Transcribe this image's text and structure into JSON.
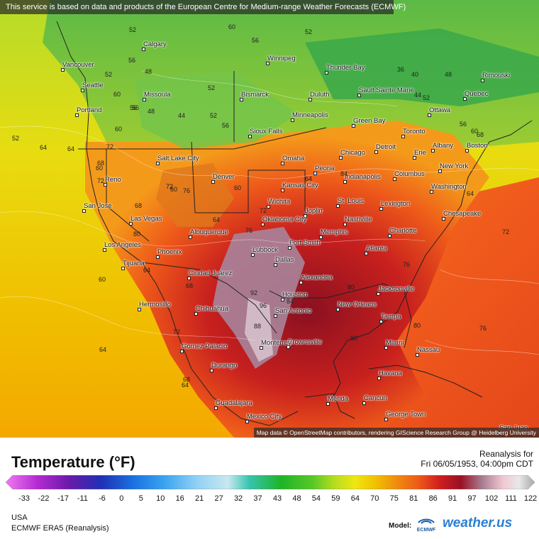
{
  "notice": "This service is based on data and products of the European Centre for Medium-range Weather Forecasts (ECMWF)",
  "attribution": "Map data © OpenStreetMap contributors, rendering GIScience Research Group @ Heidelberg University",
  "legend": {
    "title": "Temperature (°F)",
    "valid_line1": "Reanalysis for",
    "valid_line2": "Fri 06/05/1953, 04:00pm CDT",
    "ticks": [
      "-33",
      "-22",
      "-17",
      "-11",
      "-6",
      "0",
      "5",
      "10",
      "16",
      "21",
      "27",
      "32",
      "37",
      "43",
      "48",
      "54",
      "59",
      "64",
      "70",
      "75",
      "81",
      "86",
      "91",
      "97",
      "102",
      "111",
      "122"
    ],
    "region": "USA",
    "source": "ECMWF ERA5 (Reanalysis)",
    "model_label": "Model:",
    "model_logo_text": "ECMWF",
    "brand": "weather.us"
  },
  "cities": [
    {
      "name": "Calgary"
    },
    {
      "name": "Winnipeg"
    },
    {
      "name": "Thunder Bay"
    },
    {
      "name": "Vancouver"
    },
    {
      "name": "Seattle"
    },
    {
      "name": "Missoula"
    },
    {
      "name": "Bismarck"
    },
    {
      "name": "Duluth"
    },
    {
      "name": "Sault Sainte Marie"
    },
    {
      "name": "Rimouski"
    },
    {
      "name": "Quebec"
    },
    {
      "name": "Portland"
    },
    {
      "name": "Minneapolis"
    },
    {
      "name": "Green Bay"
    },
    {
      "name": "Ottawa"
    },
    {
      "name": "Sioux Falls"
    },
    {
      "name": "Toronto"
    },
    {
      "name": "Detroit"
    },
    {
      "name": "Albany"
    },
    {
      "name": "Boston"
    },
    {
      "name": "Erie"
    },
    {
      "name": "Salt Lake City"
    },
    {
      "name": "Omaha"
    },
    {
      "name": "Chicago"
    },
    {
      "name": "Reno"
    },
    {
      "name": "Denver"
    },
    {
      "name": "Peoria"
    },
    {
      "name": "Indianapolis"
    },
    {
      "name": "Columbus"
    },
    {
      "name": "New York"
    },
    {
      "name": "Kansas City"
    },
    {
      "name": "Washington"
    },
    {
      "name": "San José"
    },
    {
      "name": "Wichita"
    },
    {
      "name": "St. Louis"
    },
    {
      "name": "Lexington"
    },
    {
      "name": "Las Vegas"
    },
    {
      "name": "Joplin"
    },
    {
      "name": "Chesapeake"
    },
    {
      "name": "Oklahoma City"
    },
    {
      "name": "Nashville"
    },
    {
      "name": "Albuquerque"
    },
    {
      "name": "Memphis"
    },
    {
      "name": "Charlotte"
    },
    {
      "name": "Los Angeles"
    },
    {
      "name": "Fort Smith"
    },
    {
      "name": "Phoenix"
    },
    {
      "name": "Lubbock"
    },
    {
      "name": "Atlanta"
    },
    {
      "name": "Tijuana"
    },
    {
      "name": "Dallas"
    },
    {
      "name": "Ciudad Juárez"
    },
    {
      "name": "Alexandria"
    },
    {
      "name": "Jacksonville"
    },
    {
      "name": "Houston"
    },
    {
      "name": "Hermosillo"
    },
    {
      "name": "New Orleans"
    },
    {
      "name": "Chihuahua"
    },
    {
      "name": "San Antonio"
    },
    {
      "name": "Tampa"
    },
    {
      "name": "Brownsville"
    },
    {
      "name": "Miami"
    },
    {
      "name": "Gomez Palacio"
    },
    {
      "name": "Monterrey"
    },
    {
      "name": "Nassau"
    },
    {
      "name": "Durango"
    },
    {
      "name": "Havana"
    },
    {
      "name": "Guadalajara"
    },
    {
      "name": "Mérida"
    },
    {
      "name": "Cancún"
    },
    {
      "name": "George Town"
    },
    {
      "name": "Mexico City"
    },
    {
      "name": "San Juan"
    }
  ],
  "contour_labels": [
    {
      "text": "52"
    },
    {
      "text": "60"
    },
    {
      "text": "52"
    },
    {
      "text": "56"
    },
    {
      "text": "56"
    },
    {
      "text": "48"
    },
    {
      "text": "52"
    },
    {
      "text": "56"
    },
    {
      "text": "60"
    },
    {
      "text": "48"
    },
    {
      "text": "44"
    },
    {
      "text": "52"
    },
    {
      "text": "56"
    },
    {
      "text": "52"
    },
    {
      "text": "64"
    },
    {
      "text": "60"
    },
    {
      "text": "72"
    },
    {
      "text": "60"
    },
    {
      "text": "72"
    },
    {
      "text": "68"
    },
    {
      "text": "76"
    },
    {
      "text": "80"
    },
    {
      "text": "60"
    },
    {
      "text": "64"
    },
    {
      "text": "72"
    },
    {
      "text": "64"
    },
    {
      "text": "76"
    },
    {
      "text": "68"
    },
    {
      "text": "64"
    },
    {
      "text": "72"
    },
    {
      "text": "92"
    },
    {
      "text": "96"
    },
    {
      "text": "84"
    },
    {
      "text": "80"
    },
    {
      "text": "76"
    },
    {
      "text": "64"
    },
    {
      "text": "60"
    },
    {
      "text": "68"
    },
    {
      "text": "36"
    },
    {
      "text": "40"
    },
    {
      "text": "44"
    },
    {
      "text": "48"
    },
    {
      "text": "52"
    },
    {
      "text": "56"
    },
    {
      "text": "60"
    },
    {
      "text": "64"
    },
    {
      "text": "68"
    },
    {
      "text": "72"
    },
    {
      "text": "84"
    },
    {
      "text": "80"
    },
    {
      "text": "76"
    },
    {
      "text": "64"
    },
    {
      "text": "80"
    },
    {
      "text": "72"
    },
    {
      "text": "68"
    },
    {
      "text": "64"
    },
    {
      "text": "60"
    },
    {
      "text": "56"
    },
    {
      "text": "52"
    },
    {
      "text": "88"
    }
  ],
  "colors": {
    "ocean_pacific": "#e6c200",
    "ocean_atlantic": "#f0501e",
    "land_cool": "#5fc24a",
    "land_mild": "#c8dc28",
    "land_warm": "#f0641e",
    "land_hot": "#b41428",
    "land_extreme": "#a07c90"
  }
}
